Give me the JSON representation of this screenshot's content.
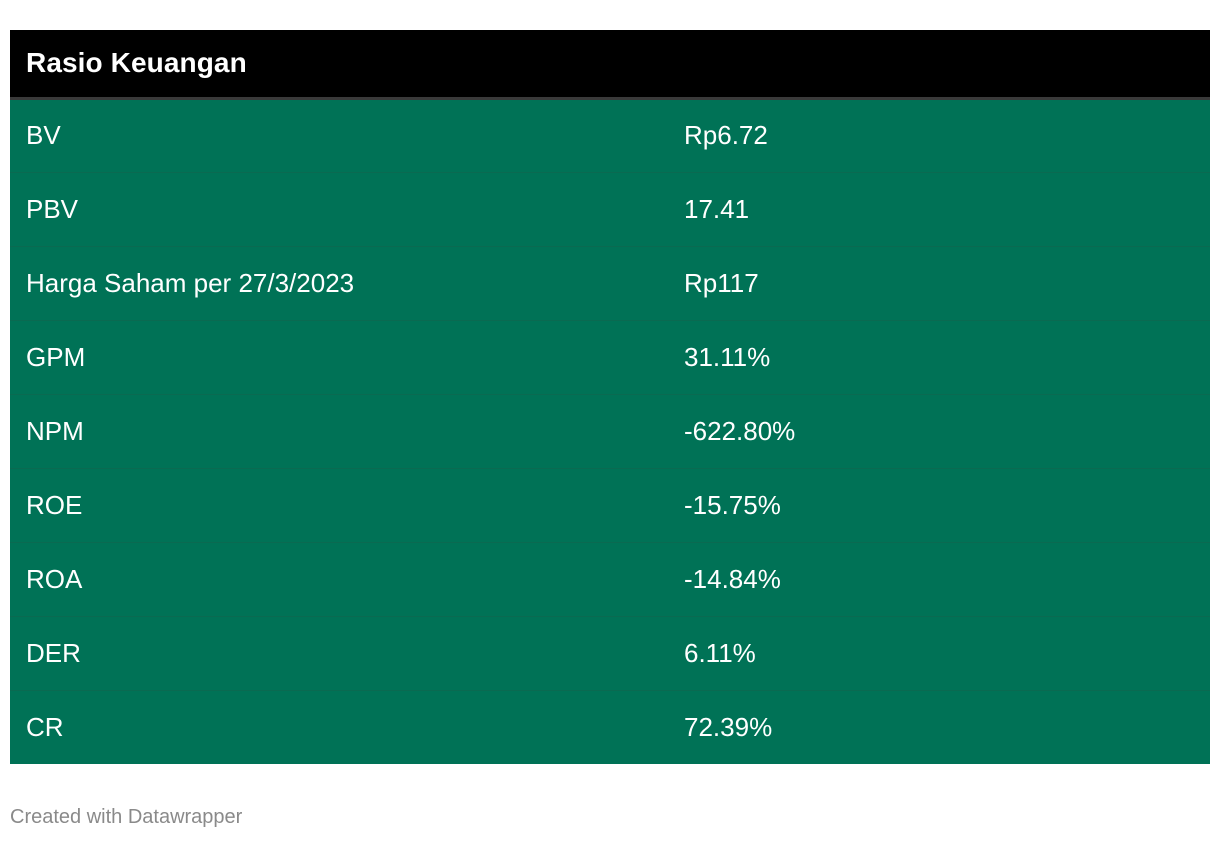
{
  "chart_data": {
    "type": "table",
    "title": "Rasio Keuangan",
    "rows": [
      {
        "label": "BV",
        "value": "Rp6.72"
      },
      {
        "label": "PBV",
        "value": "17.41"
      },
      {
        "label": "Harga Saham per 27/3/2023",
        "value": "Rp117"
      },
      {
        "label": "GPM",
        "value": "31.11%"
      },
      {
        "label": "NPM",
        "value": "-622.80%"
      },
      {
        "label": "ROE",
        "value": "-15.75%"
      },
      {
        "label": "ROA",
        "value": "-14.84%"
      },
      {
        "label": "DER",
        "value": "6.11%"
      },
      {
        "label": "CR",
        "value": "72.39%"
      }
    ]
  },
  "footer": {
    "credit": "Created with Datawrapper"
  },
  "colors": {
    "header_bg": "#000000",
    "row_bg": "#007256",
    "text": "#ffffff",
    "credit_text": "#8a8a8a"
  }
}
